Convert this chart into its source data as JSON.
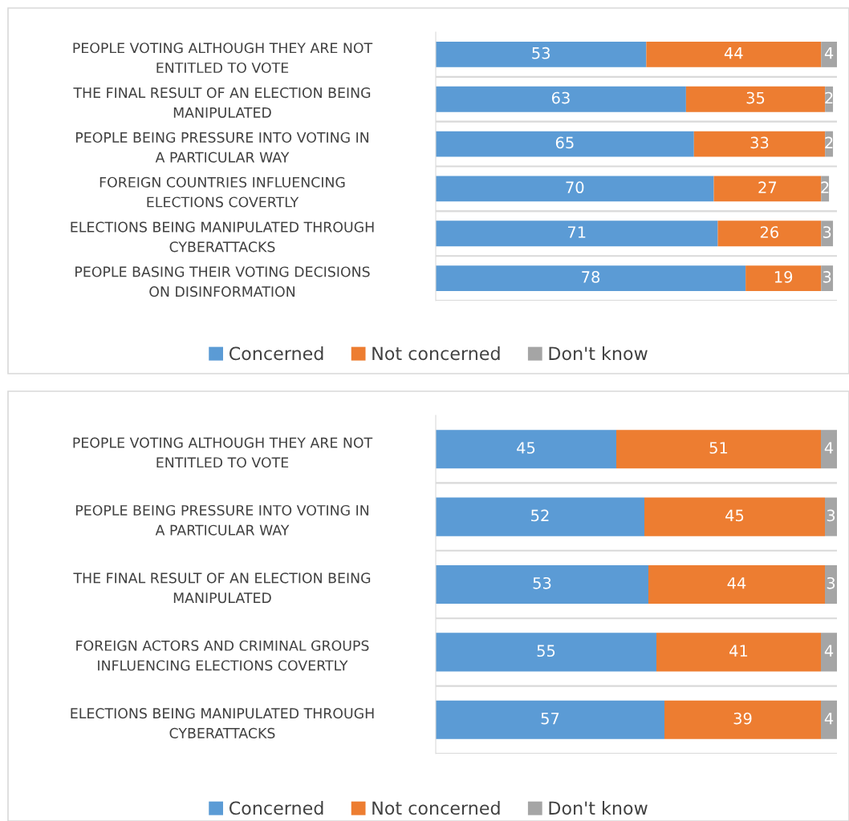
{
  "chart_data": [
    {
      "type": "bar",
      "orientation": "horizontal",
      "stacked": true,
      "data_labels": true,
      "legend": "bottom",
      "grid": "y",
      "tick_labels": "y",
      "xlim": [
        0,
        101
      ],
      "categories": [
        "PEOPLE VOTING ALTHOUGH THEY ARE NOT\nENTITLED TO VOTE",
        "THE FINAL RESULT OF AN ELECTION BEING\nMANIPULATED",
        "PEOPLE BEING PRESSURE INTO VOTING IN\nA PARTICULAR WAY",
        "FOREIGN COUNTRIES INFLUENCING\nELECTIONS COVERTLY",
        "ELECTIONS BEING MANIPULATED THROUGH\nCYBERATTACKS",
        "PEOPLE BASING THEIR VOTING DECISIONS\nON DISINFORMATION"
      ],
      "series": [
        {
          "name": "Concerned",
          "color": "#5b9bd5",
          "values": [
            53,
            63,
            65,
            70,
            71,
            78
          ]
        },
        {
          "name": "Not concerned",
          "color": "#ed7d31",
          "values": [
            44,
            35,
            33,
            27,
            26,
            19
          ]
        },
        {
          "name": "Don't know",
          "color": "#a5a5a5",
          "values": [
            4,
            2,
            2,
            2,
            3,
            3
          ]
        }
      ]
    },
    {
      "type": "bar",
      "orientation": "horizontal",
      "stacked": true,
      "data_labels": true,
      "legend": "bottom",
      "grid": "y",
      "tick_labels": "y",
      "xlim": [
        0,
        100
      ],
      "categories": [
        "PEOPLE VOTING ALTHOUGH THEY ARE NOT\nENTITLED TO VOTE",
        "PEOPLE BEING PRESSURE INTO VOTING IN\nA PARTICULAR WAY",
        "THE FINAL RESULT OF AN ELECTION BEING\nMANIPULATED",
        "FOREIGN ACTORS AND CRIMINAL GROUPS\nINFLUENCING ELECTIONS COVERTLY",
        "ELECTIONS BEING MANIPULATED THROUGH\nCYBERATTACKS"
      ],
      "series": [
        {
          "name": "Concerned",
          "color": "#5b9bd5",
          "values": [
            45,
            52,
            53,
            55,
            57
          ]
        },
        {
          "name": "Not concerned",
          "color": "#ed7d31",
          "values": [
            51,
            45,
            44,
            41,
            39
          ]
        },
        {
          "name": "Don't know",
          "color": "#a5a5a5",
          "values": [
            4,
            3,
            3,
            4,
            4
          ]
        }
      ]
    }
  ]
}
